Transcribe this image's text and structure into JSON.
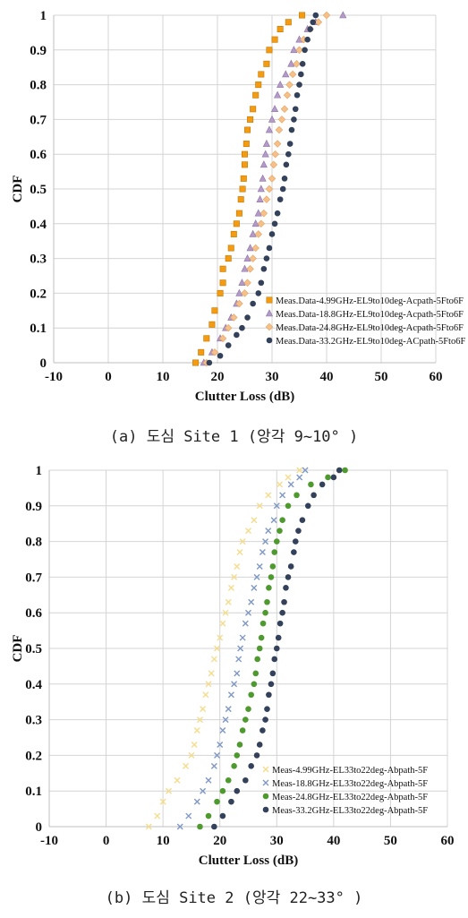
{
  "chart_data": [
    {
      "type": "scatter",
      "xlabel": "Clutter Loss (dB)",
      "ylabel": "CDF",
      "xlim": [
        -10,
        60
      ],
      "ylim": [
        0,
        1
      ],
      "xticks": [
        "-10",
        "0",
        "10",
        "20",
        "30",
        "40",
        "50",
        "60"
      ],
      "yticks": [
        "0",
        "0.1",
        "0.2",
        "0.3",
        "0.4",
        "0.5",
        "0.6",
        "0.7",
        "0.8",
        "0.9",
        "1"
      ],
      "grid": true,
      "legend_position": "bottom-right",
      "caption": "(a) 도심 Site 1 (앙각 9~10° )",
      "series": [
        {
          "name": "Meas.Data-4.99GHz-EL9to10deg-Acpath-5Fto6F",
          "color": "#f39c12",
          "marker": "square",
          "points": [
            [
              16,
              0
            ],
            [
              17,
              0.03
            ],
            [
              18,
              0.07
            ],
            [
              19,
              0.11
            ],
            [
              19.5,
              0.15
            ],
            [
              20.5,
              0.2
            ],
            [
              21,
              0.23
            ],
            [
              21,
              0.27
            ],
            [
              22,
              0.3
            ],
            [
              22.5,
              0.33
            ],
            [
              23,
              0.37
            ],
            [
              23.5,
              0.4
            ],
            [
              24,
              0.43
            ],
            [
              24.3,
              0.47
            ],
            [
              24.6,
              0.5
            ],
            [
              24.8,
              0.53
            ],
            [
              25,
              0.57
            ],
            [
              25,
              0.6
            ],
            [
              25.3,
              0.63
            ],
            [
              25.5,
              0.67
            ],
            [
              26,
              0.7
            ],
            [
              26.5,
              0.73
            ],
            [
              27,
              0.77
            ],
            [
              27.5,
              0.8
            ],
            [
              28,
              0.83
            ],
            [
              29,
              0.86
            ],
            [
              29.5,
              0.9
            ],
            [
              30.5,
              0.93
            ],
            [
              31.5,
              0.96
            ],
            [
              33,
              0.98
            ],
            [
              35.5,
              1
            ]
          ]
        },
        {
          "name": "Meas.Data-18.8GHz-EL9to10deg-Acpath-5Fto6F",
          "color": "#b39ac7",
          "marker": "triangle",
          "points": [
            [
              17.5,
              0
            ],
            [
              19,
              0.03
            ],
            [
              20.5,
              0.07
            ],
            [
              21.5,
              0.1
            ],
            [
              22.5,
              0.13
            ],
            [
              23.5,
              0.17
            ],
            [
              24,
              0.2
            ],
            [
              24.5,
              0.23
            ],
            [
              25,
              0.27
            ],
            [
              25.5,
              0.3
            ],
            [
              26,
              0.33
            ],
            [
              26.5,
              0.37
            ],
            [
              27,
              0.4
            ],
            [
              27.5,
              0.43
            ],
            [
              27.8,
              0.47
            ],
            [
              28,
              0.5
            ],
            [
              28.3,
              0.53
            ],
            [
              28.5,
              0.57
            ],
            [
              28.8,
              0.6
            ],
            [
              29,
              0.63
            ],
            [
              29.5,
              0.67
            ],
            [
              30,
              0.7
            ],
            [
              30.5,
              0.73
            ],
            [
              31,
              0.77
            ],
            [
              31.5,
              0.8
            ],
            [
              32.5,
              0.83
            ],
            [
              33.5,
              0.86
            ],
            [
              34,
              0.9
            ],
            [
              35,
              0.93
            ],
            [
              36.5,
              0.96
            ],
            [
              38,
              0.98
            ],
            [
              43,
              1
            ]
          ]
        },
        {
          "name": "Meas.Data-24.8GHz-EL9to10deg-Acpath-5Fto6F",
          "color": "#f6c089",
          "marker": "diamond",
          "points": [
            [
              18,
              0
            ],
            [
              19.5,
              0.03
            ],
            [
              21,
              0.07
            ],
            [
              22,
              0.1
            ],
            [
              23,
              0.13
            ],
            [
              24,
              0.17
            ],
            [
              25,
              0.2
            ],
            [
              25.5,
              0.23
            ],
            [
              26,
              0.27
            ],
            [
              26.5,
              0.3
            ],
            [
              27,
              0.33
            ],
            [
              27.5,
              0.37
            ],
            [
              28,
              0.4
            ],
            [
              28.5,
              0.43
            ],
            [
              29,
              0.47
            ],
            [
              29.5,
              0.5
            ],
            [
              30,
              0.53
            ],
            [
              30.3,
              0.57
            ],
            [
              30.6,
              0.6
            ],
            [
              31,
              0.63
            ],
            [
              31.3,
              0.67
            ],
            [
              31.8,
              0.7
            ],
            [
              32.3,
              0.73
            ],
            [
              32.8,
              0.77
            ],
            [
              33.2,
              0.8
            ],
            [
              33.8,
              0.83
            ],
            [
              34.5,
              0.86
            ],
            [
              35,
              0.9
            ],
            [
              35.8,
              0.93
            ],
            [
              37,
              0.96
            ],
            [
              38.5,
              0.98
            ],
            [
              40,
              1
            ]
          ]
        },
        {
          "name": "Meas.Data-33.2GHz-EL9to10deg-ACpath-5Fto6F",
          "color": "#33415a",
          "marker": "circle",
          "points": [
            [
              18.5,
              0
            ],
            [
              20.5,
              0.02
            ],
            [
              22,
              0.05
            ],
            [
              23.5,
              0.08
            ],
            [
              24.5,
              0.1
            ],
            [
              25.5,
              0.13
            ],
            [
              26.5,
              0.17
            ],
            [
              27.5,
              0.2
            ],
            [
              28,
              0.23
            ],
            [
              28.5,
              0.27
            ],
            [
              29,
              0.3
            ],
            [
              29.5,
              0.33
            ],
            [
              30,
              0.37
            ],
            [
              30.5,
              0.4
            ],
            [
              31,
              0.43
            ],
            [
              31.5,
              0.47
            ],
            [
              32,
              0.5
            ],
            [
              32.3,
              0.53
            ],
            [
              32.6,
              0.57
            ],
            [
              33,
              0.6
            ],
            [
              33.3,
              0.63
            ],
            [
              33.6,
              0.67
            ],
            [
              34,
              0.7
            ],
            [
              34.3,
              0.73
            ],
            [
              34.6,
              0.77
            ],
            [
              35,
              0.8
            ],
            [
              35.3,
              0.83
            ],
            [
              35.6,
              0.86
            ],
            [
              36,
              0.9
            ],
            [
              36.5,
              0.93
            ],
            [
              37,
              0.96
            ],
            [
              37.5,
              0.98
            ],
            [
              38,
              1
            ]
          ]
        }
      ]
    },
    {
      "type": "scatter",
      "xlabel": "Clutter Loss (dB)",
      "ylabel": "CDF",
      "xlim": [
        -10,
        60
      ],
      "ylim": [
        0,
        1
      ],
      "xticks": [
        "-10",
        "0",
        "10",
        "20",
        "30",
        "40",
        "50",
        "60"
      ],
      "yticks": [
        "0",
        "0.1",
        "0.2",
        "0.3",
        "0.4",
        "0.5",
        "0.6",
        "0.7",
        "0.8",
        "0.9",
        "1"
      ],
      "grid": true,
      "legend_position": "bottom-right",
      "caption": "(b) 도심 Site 2 (앙각 22~33° )",
      "series": [
        {
          "name": "Meas-4.99GHz-EL33to22deg-Abpath-5F",
          "color": "#f5dc8c",
          "marker": "x",
          "points": [
            [
              7.5,
              0
            ],
            [
              9,
              0.03
            ],
            [
              10,
              0.07
            ],
            [
              11,
              0.1
            ],
            [
              12.5,
              0.13
            ],
            [
              14,
              0.17
            ],
            [
              15,
              0.2
            ],
            [
              15.5,
              0.23
            ],
            [
              16,
              0.27
            ],
            [
              16.5,
              0.3
            ],
            [
              17,
              0.33
            ],
            [
              17.5,
              0.37
            ],
            [
              18,
              0.4
            ],
            [
              18.5,
              0.43
            ],
            [
              19,
              0.47
            ],
            [
              19.5,
              0.5
            ],
            [
              20,
              0.53
            ],
            [
              20.5,
              0.57
            ],
            [
              21,
              0.6
            ],
            [
              21.5,
              0.63
            ],
            [
              22,
              0.67
            ],
            [
              22.5,
              0.7
            ],
            [
              23,
              0.73
            ],
            [
              23.5,
              0.77
            ],
            [
              24,
              0.8
            ],
            [
              25,
              0.83
            ],
            [
              26,
              0.86
            ],
            [
              27,
              0.9
            ],
            [
              28.5,
              0.93
            ],
            [
              30.5,
              0.96
            ],
            [
              32,
              0.98
            ],
            [
              34,
              1
            ]
          ]
        },
        {
          "name": "Meas-18.8GHz-EL33to22deg-Abpath-5F",
          "color": "#7f98c4",
          "marker": "x",
          "points": [
            [
              13,
              0
            ],
            [
              14.5,
              0.03
            ],
            [
              16,
              0.07
            ],
            [
              17,
              0.1
            ],
            [
              18,
              0.13
            ],
            [
              19,
              0.17
            ],
            [
              19.5,
              0.2
            ],
            [
              20,
              0.23
            ],
            [
              20.5,
              0.27
            ],
            [
              21,
              0.3
            ],
            [
              21.5,
              0.33
            ],
            [
              22,
              0.37
            ],
            [
              22.5,
              0.4
            ],
            [
              23,
              0.43
            ],
            [
              23.3,
              0.47
            ],
            [
              23.6,
              0.5
            ],
            [
              24,
              0.53
            ],
            [
              24.5,
              0.57
            ],
            [
              25,
              0.6
            ],
            [
              25.5,
              0.63
            ],
            [
              26,
              0.67
            ],
            [
              26.5,
              0.7
            ],
            [
              27,
              0.73
            ],
            [
              27.5,
              0.77
            ],
            [
              28,
              0.8
            ],
            [
              28.5,
              0.83
            ],
            [
              29.5,
              0.86
            ],
            [
              30,
              0.9
            ],
            [
              31,
              0.93
            ],
            [
              32.5,
              0.96
            ],
            [
              34,
              0.98
            ],
            [
              35,
              1
            ]
          ]
        },
        {
          "name": "Meas-24.8GHz-EL33to22deg-Abpath-5F",
          "color": "#4e9a2e",
          "marker": "circle",
          "points": [
            [
              16.5,
              0
            ],
            [
              18,
              0.03
            ],
            [
              19.5,
              0.07
            ],
            [
              20.5,
              0.1
            ],
            [
              21.5,
              0.13
            ],
            [
              22.5,
              0.17
            ],
            [
              23,
              0.2
            ],
            [
              23.5,
              0.23
            ],
            [
              24,
              0.27
            ],
            [
              24.5,
              0.3
            ],
            [
              25,
              0.33
            ],
            [
              25.5,
              0.37
            ],
            [
              26,
              0.4
            ],
            [
              26.3,
              0.43
            ],
            [
              26.6,
              0.47
            ],
            [
              27,
              0.5
            ],
            [
              27.3,
              0.53
            ],
            [
              27.6,
              0.57
            ],
            [
              28,
              0.6
            ],
            [
              28.3,
              0.63
            ],
            [
              28.6,
              0.67
            ],
            [
              29,
              0.7
            ],
            [
              29.3,
              0.73
            ],
            [
              29.6,
              0.77
            ],
            [
              30,
              0.8
            ],
            [
              30.5,
              0.83
            ],
            [
              31,
              0.86
            ],
            [
              32,
              0.9
            ],
            [
              33.5,
              0.93
            ],
            [
              36,
              0.96
            ],
            [
              39,
              0.98
            ],
            [
              42,
              1
            ]
          ]
        },
        {
          "name": "Meas-33.2GHz-EL33to22deg-Abpath-5F",
          "color": "#33415a",
          "marker": "circle",
          "points": [
            [
              19,
              0
            ],
            [
              20.5,
              0.03
            ],
            [
              22,
              0.07
            ],
            [
              23,
              0.1
            ],
            [
              24.5,
              0.13
            ],
            [
              25.5,
              0.17
            ],
            [
              26.5,
              0.2
            ],
            [
              27,
              0.23
            ],
            [
              27.5,
              0.27
            ],
            [
              28,
              0.3
            ],
            [
              28.3,
              0.33
            ],
            [
              28.6,
              0.37
            ],
            [
              29,
              0.4
            ],
            [
              29.3,
              0.43
            ],
            [
              29.6,
              0.47
            ],
            [
              30,
              0.5
            ],
            [
              30.3,
              0.53
            ],
            [
              30.6,
              0.57
            ],
            [
              31,
              0.6
            ],
            [
              31.3,
              0.63
            ],
            [
              31.6,
              0.67
            ],
            [
              32,
              0.7
            ],
            [
              32.5,
              0.73
            ],
            [
              33,
              0.77
            ],
            [
              33.3,
              0.8
            ],
            [
              33.8,
              0.83
            ],
            [
              34.5,
              0.86
            ],
            [
              35.5,
              0.9
            ],
            [
              36.5,
              0.93
            ],
            [
              38,
              0.96
            ],
            [
              40,
              0.98
            ],
            [
              41,
              1
            ]
          ]
        }
      ]
    }
  ]
}
